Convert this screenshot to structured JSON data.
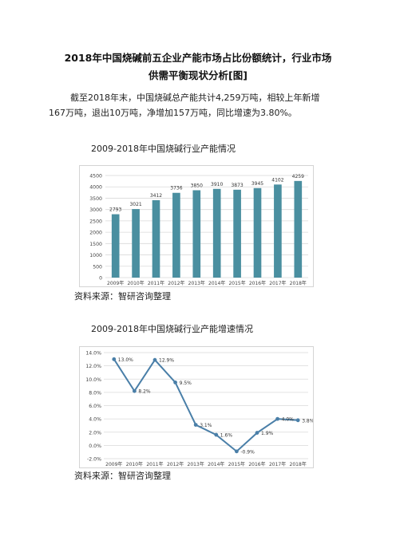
{
  "article": {
    "title_line1": "2018年中国烧碱前五企业产能市场占比份额统计，行业市场",
    "title_line2": "供需平衡现状分析[图]",
    "paragraph": "截至2018年末，中国烧碱总产能共计4,259万吨，相较上年新增167万吨，退出10万吨，净增加157万吨，同比增速为3.80%。",
    "caption1": "2009-2018年中国烧碱行业产能情况",
    "source1": "资料来源：智研咨询整理",
    "caption2": "2009-2018年中国烧碱行业产能增速情况",
    "source2": "资料来源：智研咨询整理"
  },
  "chart_data": [
    {
      "type": "bar",
      "categories": [
        "2009年",
        "2010年",
        "2011年",
        "2012年",
        "2013年",
        "2014年",
        "2015年",
        "2016年",
        "2017年",
        "2018年"
      ],
      "values": [
        2793,
        3021,
        3412,
        3736,
        3850,
        3910,
        3873,
        3945,
        4102,
        4259
      ],
      "y_ticks": [
        "0",
        "500",
        "1000",
        "1500",
        "2000",
        "2500",
        "3000",
        "3500",
        "4000",
        "4500"
      ],
      "ylim": [
        0,
        4500
      ],
      "bar_color": "#4a8fa0",
      "grid": true
    },
    {
      "type": "line",
      "categories": [
        "2009年",
        "2010年",
        "2011年",
        "2012年",
        "2013年",
        "2014年",
        "2015年",
        "2016年",
        "2017年",
        "2018年"
      ],
      "values": [
        13.0,
        8.2,
        12.9,
        9.5,
        3.1,
        1.6,
        -0.9,
        1.9,
        4.0,
        3.8
      ],
      "labels": [
        "13.0%",
        "8.2%",
        "12.9%",
        "9.5%",
        "3.1%",
        "1.6%",
        "-0.9%",
        "1.9%",
        "4.0%",
        "3.8%"
      ],
      "y_ticks": [
        "-2.0%",
        "0.0%",
        "2.0%",
        "4.0%",
        "6.0%",
        "8.0%",
        "10.0%",
        "12.0%",
        "14.0%"
      ],
      "ylim": [
        -2,
        14
      ],
      "line_color": "#4a7fa8",
      "grid": true
    }
  ]
}
